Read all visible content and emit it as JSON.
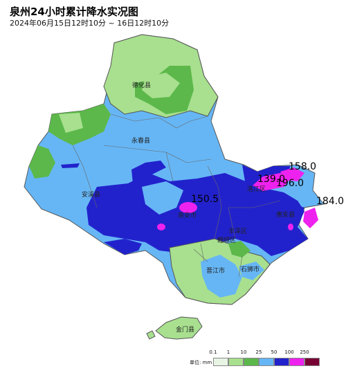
{
  "header": {
    "title": "泉州24小时累计降水实况图",
    "subtitle": "2024年06月15日12时10分 ~ 16日12时10分"
  },
  "counties": [
    {
      "name": "德化县"
    },
    {
      "name": "永春县"
    },
    {
      "name": "安溪县"
    },
    {
      "name": "南安市"
    },
    {
      "name": "惠安县"
    },
    {
      "name": "洛江区"
    },
    {
      "name": "丰泽区"
    },
    {
      "name": "鲤城区"
    },
    {
      "name": "晋江市"
    },
    {
      "name": "石狮市"
    },
    {
      "name": "金门县"
    }
  ],
  "peaks": [
    "158.0",
    "139.0",
    "196.0",
    "184.0",
    "150.5"
  ],
  "legend": {
    "unit_label": "单位: mm",
    "ticks": [
      "0.1",
      "1",
      "10",
      "25",
      "50",
      "100",
      "250"
    ],
    "colors": [
      "#e8f5e4",
      "#a8e08f",
      "#5cb84a",
      "#66b6f5",
      "#2222cc",
      "#ee22ee",
      "#770033"
    ]
  }
}
